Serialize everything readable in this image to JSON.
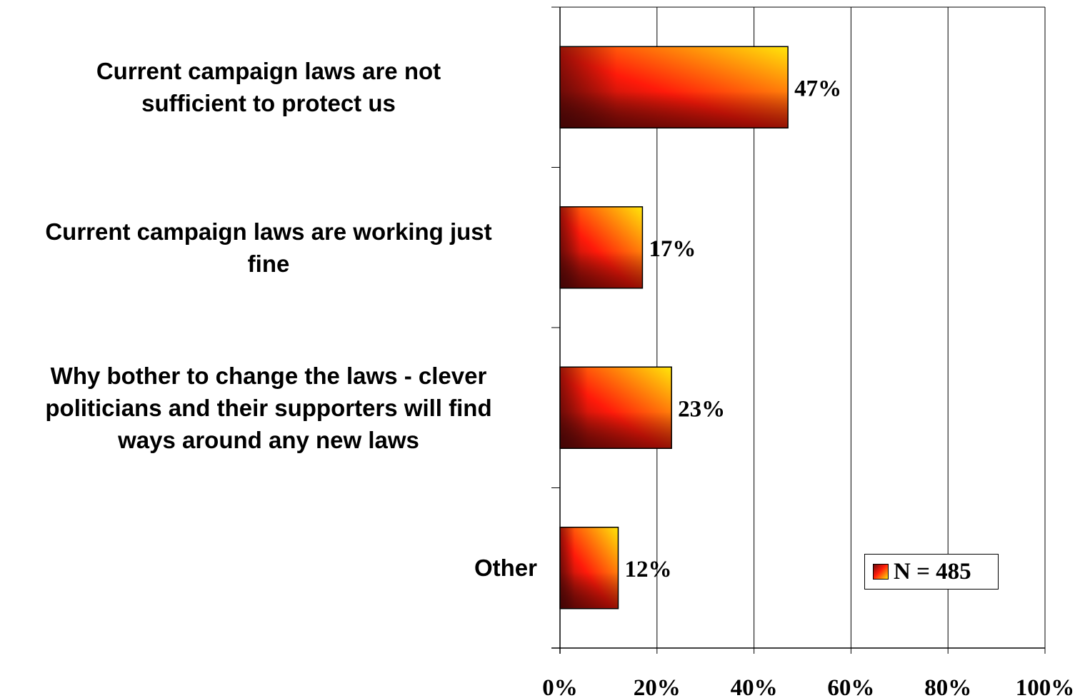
{
  "chart_data": {
    "type": "bar",
    "orientation": "horizontal",
    "categories": [
      [
        "Current campaign laws are not",
        "sufficient to protect us"
      ],
      [
        "Current campaign laws are working just",
        "fine"
      ],
      [
        "Why bother to change the laws - clever",
        "politicians and their supporters will find",
        "ways around any new laws"
      ],
      [
        "Other"
      ]
    ],
    "values": [
      47,
      17,
      23,
      12
    ],
    "data_labels": [
      "47%",
      "17%",
      "23%",
      "12%"
    ],
    "xlim": [
      0,
      100
    ],
    "x_ticks": [
      0,
      20,
      40,
      60,
      80,
      100
    ],
    "x_tick_labels": [
      "0%",
      "20%",
      "40%",
      "60%",
      "80%",
      "100%"
    ],
    "grid": "vertical",
    "legend": {
      "label": "N = 485",
      "position": "bottom-right"
    },
    "bar_gradient": [
      "#5a0a0a",
      "#ff1a0a",
      "#ffe60a"
    ]
  }
}
